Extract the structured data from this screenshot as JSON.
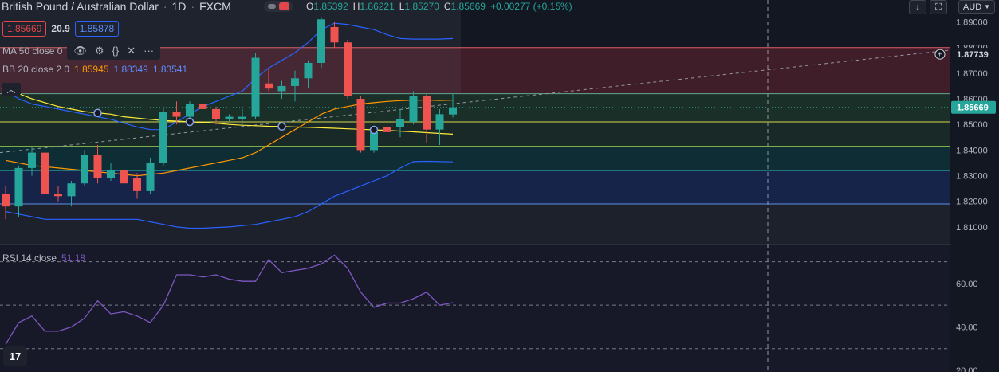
{
  "header": {
    "symbol": "British Pound / Australian Dollar",
    "interval": "1D",
    "exchange": "FXCM",
    "ohlc": [
      {
        "key": "O",
        "value": "1.85392"
      },
      {
        "key": "H",
        "value": "1.86221"
      },
      {
        "key": "L",
        "value": "1.85270"
      },
      {
        "key": "C",
        "value": "1.85669"
      }
    ],
    "change": "+0.00277 (+0.15%)",
    "bid": "1.85669",
    "spread": "20.9",
    "ask": "1.85878",
    "currency": "AUD"
  },
  "indicators": {
    "ma": {
      "label": "MA 50 close 0"
    },
    "bb": {
      "label": "BB 20 close 2 0",
      "basis": "1.85945",
      "upper": "1.88349",
      "lower": "1.83541"
    },
    "rsi": {
      "label": "RSI 14 close",
      "value": "51.18"
    }
  },
  "colors": {
    "up": "#26a69a",
    "down": "#ef5350",
    "bb": "#2962ff",
    "bb_basis": "#ff9800",
    "ma": "#ffeb3b",
    "rsi": "#7e57c2"
  },
  "chart_data": [
    {
      "type": "candlestick",
      "title": "British Pound / Australian Dollar",
      "ylim": [
        1.805,
        1.897
      ],
      "y_ticks": [
        "1.89000",
        "1.88000",
        "1.87000",
        "1.86000",
        "1.85000",
        "1.84000",
        "1.83000",
        "1.82000",
        "1.81000"
      ],
      "grid": false,
      "candles": [
        {
          "o": 1.823,
          "h": 1.826,
          "l": 1.813,
          "c": 1.818
        },
        {
          "o": 1.818,
          "h": 1.834,
          "l": 1.814,
          "c": 1.833
        },
        {
          "o": 1.833,
          "h": 1.841,
          "l": 1.83,
          "c": 1.839
        },
        {
          "o": 1.839,
          "h": 1.84,
          "l": 1.819,
          "c": 1.823
        },
        {
          "o": 1.823,
          "h": 1.826,
          "l": 1.82,
          "c": 1.822
        },
        {
          "o": 1.822,
          "h": 1.828,
          "l": 1.818,
          "c": 1.827
        },
        {
          "o": 1.827,
          "h": 1.84,
          "l": 1.826,
          "c": 1.838
        },
        {
          "o": 1.838,
          "h": 1.842,
          "l": 1.827,
          "c": 1.829
        },
        {
          "o": 1.829,
          "h": 1.835,
          "l": 1.828,
          "c": 1.832
        },
        {
          "o": 1.832,
          "h": 1.837,
          "l": 1.825,
          "c": 1.827
        },
        {
          "o": 1.829,
          "h": 1.831,
          "l": 1.821,
          "c": 1.824
        },
        {
          "o": 1.824,
          "h": 1.837,
          "l": 1.823,
          "c": 1.835
        },
        {
          "o": 1.835,
          "h": 1.857,
          "l": 1.834,
          "c": 1.855
        },
        {
          "o": 1.855,
          "h": 1.859,
          "l": 1.85,
          "c": 1.853
        },
        {
          "o": 1.853,
          "h": 1.859,
          "l": 1.851,
          "c": 1.858
        },
        {
          "o": 1.858,
          "h": 1.86,
          "l": 1.854,
          "c": 1.856
        },
        {
          "o": 1.856,
          "h": 1.857,
          "l": 1.85,
          "c": 1.852
        },
        {
          "o": 1.852,
          "h": 1.854,
          "l": 1.851,
          "c": 1.853
        },
        {
          "o": 1.852,
          "h": 1.856,
          "l": 1.85,
          "c": 1.853
        },
        {
          "o": 1.853,
          "h": 1.878,
          "l": 1.852,
          "c": 1.876
        },
        {
          "o": 1.866,
          "h": 1.872,
          "l": 1.863,
          "c": 1.864
        },
        {
          "o": 1.863,
          "h": 1.867,
          "l": 1.86,
          "c": 1.865
        },
        {
          "o": 1.865,
          "h": 1.871,
          "l": 1.859,
          "c": 1.868
        },
        {
          "o": 1.868,
          "h": 1.875,
          "l": 1.864,
          "c": 1.874
        },
        {
          "o": 1.874,
          "h": 1.892,
          "l": 1.872,
          "c": 1.891
        },
        {
          "o": 1.888,
          "h": 1.89,
          "l": 1.88,
          "c": 1.882
        },
        {
          "o": 1.882,
          "h": 1.883,
          "l": 1.86,
          "c": 1.861
        },
        {
          "o": 1.86,
          "h": 1.861,
          "l": 1.839,
          "c": 1.84
        },
        {
          "o": 1.84,
          "h": 1.849,
          "l": 1.839,
          "c": 1.847
        },
        {
          "o": 1.849,
          "h": 1.85,
          "l": 1.842,
          "c": 1.847
        },
        {
          "o": 1.849,
          "h": 1.856,
          "l": 1.845,
          "c": 1.852
        },
        {
          "o": 1.851,
          "h": 1.863,
          "l": 1.85,
          "c": 1.861
        },
        {
          "o": 1.861,
          "h": 1.862,
          "l": 1.843,
          "c": 1.848
        },
        {
          "o": 1.848,
          "h": 1.856,
          "l": 1.842,
          "c": 1.854
        },
        {
          "o": 1.8539,
          "h": 1.8622,
          "l": 1.8527,
          "c": 1.8567
        }
      ],
      "bb_upper": [
        1.863,
        1.86,
        1.858,
        1.857,
        1.856,
        1.855,
        1.854,
        1.853,
        1.852,
        1.8505,
        1.849,
        1.848,
        1.848,
        1.851,
        1.854,
        1.857,
        1.859,
        1.861,
        1.863,
        1.868,
        1.872,
        1.875,
        1.878,
        1.882,
        1.887,
        1.8895,
        1.889,
        1.888,
        1.887,
        1.885,
        1.8835,
        1.8833,
        1.8833,
        1.8833,
        1.8835
      ],
      "bb_basis": [
        1.836,
        1.835,
        1.834,
        1.8335,
        1.833,
        1.8325,
        1.832,
        1.8315,
        1.831,
        1.8305,
        1.83,
        1.8305,
        1.831,
        1.832,
        1.833,
        1.834,
        1.835,
        1.836,
        1.837,
        1.839,
        1.842,
        1.845,
        1.848,
        1.851,
        1.854,
        1.856,
        1.857,
        1.858,
        1.8585,
        1.859,
        1.8593,
        1.8595,
        1.8595,
        1.8594,
        1.8595
      ],
      "bb_lower": [
        1.816,
        1.815,
        1.814,
        1.813,
        1.813,
        1.813,
        1.813,
        1.813,
        1.813,
        1.813,
        1.813,
        1.812,
        1.811,
        1.81,
        1.8095,
        1.8095,
        1.8098,
        1.81,
        1.8105,
        1.811,
        1.812,
        1.813,
        1.814,
        1.816,
        1.819,
        1.822,
        1.824,
        1.826,
        1.828,
        1.83,
        1.833,
        1.8355,
        1.8356,
        1.8355,
        1.8354
      ],
      "ma50": [
        1.864,
        1.862,
        1.86,
        1.8585,
        1.857,
        1.856,
        1.855,
        1.8545,
        1.854,
        1.853,
        1.8525,
        1.852,
        1.8515,
        1.8513,
        1.851,
        1.8508,
        1.8505,
        1.85,
        1.8497,
        1.8495,
        1.8493,
        1.8492,
        1.849,
        1.8489,
        1.8487,
        1.8485,
        1.8483,
        1.8481,
        1.8479,
        1.8477,
        1.8474,
        1.8471,
        1.8468,
        1.8465,
        1.8462
      ],
      "ma_markers": [
        0,
        7,
        14,
        21,
        28
      ],
      "fib_levels": [
        1.88,
        1.862,
        1.851,
        1.8415,
        1.832,
        1.819
      ],
      "current_price": "1.85669",
      "alert_price": "1.87739"
    },
    {
      "type": "line",
      "title": "RSI 14 close",
      "ylim": [
        20,
        75
      ],
      "y_ticks": [
        "60.00",
        "40.00",
        "20.00"
      ],
      "levels": [
        70,
        50,
        30
      ],
      "values": [
        32,
        42,
        45,
        38,
        38,
        40,
        44,
        52,
        46,
        47,
        45,
        42,
        50,
        64,
        64,
        63,
        64,
        62,
        61,
        61,
        71,
        65,
        66,
        67,
        69,
        73,
        67,
        56,
        49,
        51,
        51,
        53,
        56,
        50,
        51.18
      ]
    }
  ]
}
